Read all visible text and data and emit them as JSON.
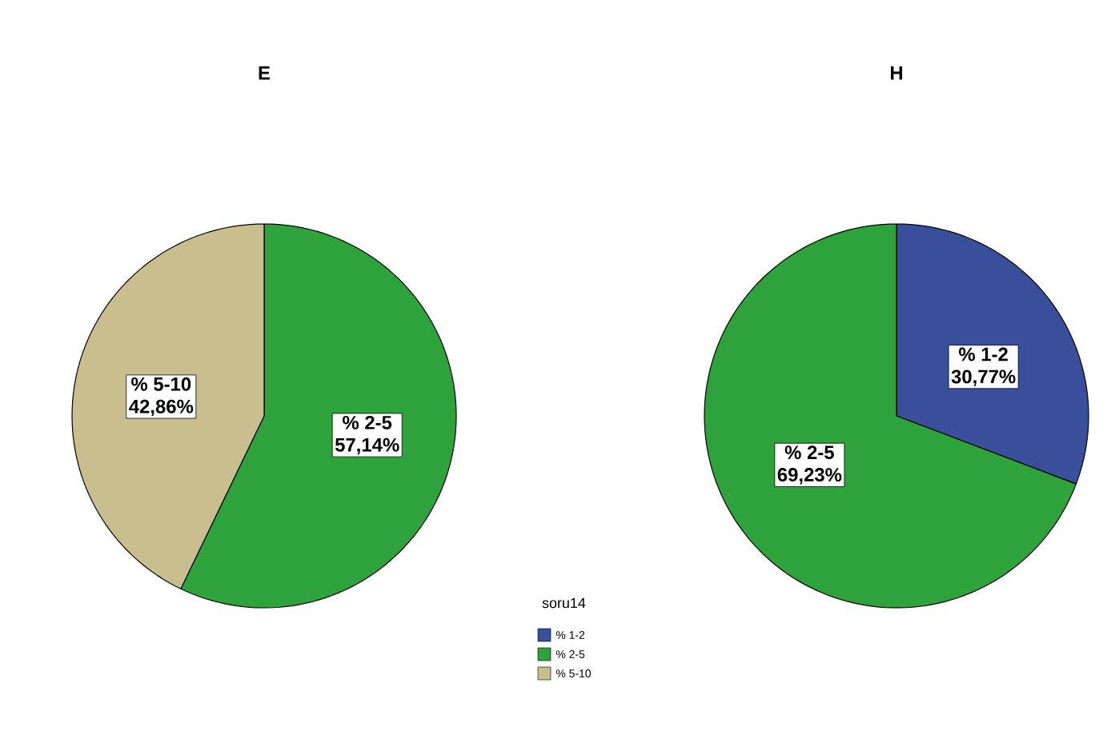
{
  "chart_data": [
    {
      "type": "pie",
      "title": "E",
      "categories": [
        "% 1-2",
        "% 2-5",
        "% 5-10"
      ],
      "values": [
        0,
        57.14,
        42.86
      ],
      "colors": [
        "#3a4f9c",
        "#2ea33b",
        "#c9bf8e"
      ],
      "value_labels": [
        null,
        "57,14%",
        "42,86%"
      ],
      "legend": "bottom right",
      "legend_title": "soru14"
    },
    {
      "type": "pie",
      "title": "H",
      "categories": [
        "% 1-2",
        "% 2-5"
      ],
      "values": [
        30.77,
        69.23
      ],
      "colors": [
        "#3a4f9c",
        "#2ea33b"
      ],
      "value_labels": [
        "30,77%",
        "69,23%"
      ]
    }
  ]
}
